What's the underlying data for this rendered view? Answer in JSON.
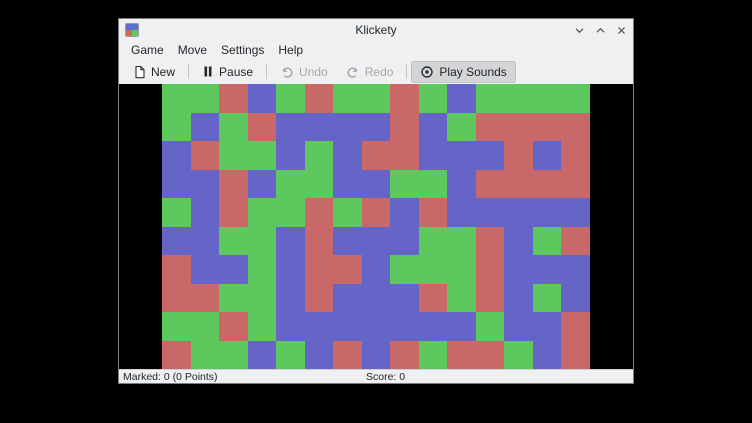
{
  "window": {
    "title": "Klickety"
  },
  "menubar": {
    "items": [
      {
        "label": "Game"
      },
      {
        "label": "Move"
      },
      {
        "label": "Settings"
      },
      {
        "label": "Help"
      }
    ]
  },
  "toolbar": {
    "buttons": [
      {
        "label": "New",
        "icon": "new-document-icon",
        "enabled": true,
        "pressed": false
      },
      {
        "label": "Pause",
        "icon": "pause-icon",
        "enabled": true,
        "pressed": false
      },
      {
        "label": "Undo",
        "icon": "undo-arrow-icon",
        "enabled": false,
        "pressed": false
      },
      {
        "label": "Redo",
        "icon": "redo-arrow-icon",
        "enabled": false,
        "pressed": false
      },
      {
        "label": "Play Sounds",
        "icon": "sound-icon",
        "enabled": true,
        "pressed": true
      }
    ]
  },
  "statusbar": {
    "marked": "Marked: 0 (0 Points)",
    "score": "Score: 0"
  },
  "board": {
    "columns": 15,
    "rows": 10,
    "colors": {
      "R": "#c96868",
      "G": "#5dc85d",
      "B": "#6565c8"
    },
    "cells": [
      "GGRBGRGGRGBGGGG",
      "GBGRBBBBRBGRRRR",
      "BRGGBGBRRBBBRBR",
      "BBRBGGBBGGBRRRR",
      "GBRGGRGRBRBBBBB",
      "BBGGBRBBBGGRBGR",
      "RBBGBRRBGGGRBBB",
      "RRGGBRBBBRGRBGB",
      "GGRGBBBBBBBGBBR",
      "RGGBGBRBRGRRGBR"
    ]
  }
}
